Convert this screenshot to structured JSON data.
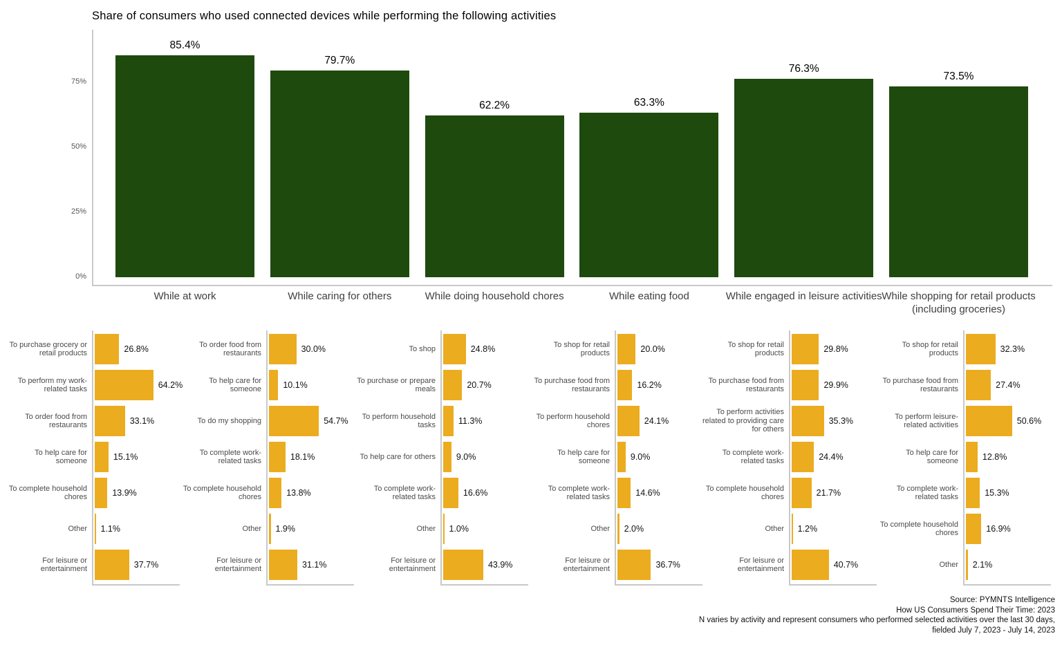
{
  "title": "Share of consumers who used connected devices while performing the following activities",
  "colors": {
    "main_bar_green": "#1E4A0E",
    "sub_bar_orange": "#ECAC20",
    "axis_gray": "#c9c9c9",
    "label_gray": "#4a4a4a"
  },
  "chart_data": [
    {
      "type": "bar",
      "title": "Share of consumers who used connected devices while performing the following activities",
      "categories": [
        "While at work",
        "While caring for others",
        "While doing household chores",
        "While eating food",
        "While engaged in leisure activities",
        "While shopping for retail products (including groceries)"
      ],
      "values": [
        85.4,
        79.7,
        62.2,
        63.3,
        76.3,
        73.5
      ],
      "value_labels": [
        "85.4%",
        "79.7%",
        "62.2%",
        "63.3%",
        "76.3%",
        "73.5%"
      ],
      "xlabel": "",
      "ylabel": "",
      "ylim": [
        0,
        100
      ],
      "yticks": [
        {
          "label": "0%",
          "value": 0
        },
        {
          "label": "25%",
          "value": 25
        },
        {
          "label": "50%",
          "value": 50
        },
        {
          "label": "75%",
          "value": 75
        }
      ],
      "grid": false,
      "legend": "none",
      "bar_color": "#1E4A0E"
    },
    {
      "type": "bar",
      "orientation": "horizontal",
      "bar_color": "#ECAC20",
      "xlim": [
        0,
        95
      ],
      "grid": false,
      "facets": [
        {
          "activity": "While at work",
          "categories": [
            "To purchase grocery or retail products",
            "To perform my work-related tasks",
            "To order food from restaurants",
            "To help care for someone",
            "To complete household chores",
            "Other",
            "For leisure or entertainment"
          ],
          "values": [
            26.8,
            64.2,
            33.1,
            15.1,
            13.9,
            1.1,
            37.7
          ],
          "value_labels": [
            "26.8%",
            "64.2%",
            "33.1%",
            "15.1%",
            "13.9%",
            "1.1%",
            "37.7%"
          ]
        },
        {
          "activity": "While caring for others",
          "categories": [
            "To order food from restaurants",
            "To help care for someone",
            "To do my shopping",
            "To complete work-related tasks",
            "To complete household chores",
            "Other",
            "For leisure or entertainment"
          ],
          "values": [
            30.0,
            10.1,
            54.7,
            18.1,
            13.8,
            1.9,
            31.1
          ],
          "value_labels": [
            "30.0%",
            "10.1%",
            "54.7%",
            "18.1%",
            "13.8%",
            "1.9%",
            "31.1%"
          ]
        },
        {
          "activity": "While doing household chores",
          "categories": [
            "To shop",
            "To purchase or prepare meals",
            "To perform household tasks",
            "To help care for others",
            "To complete work-related tasks",
            "Other",
            "For leisure or entertainment"
          ],
          "values": [
            24.8,
            20.7,
            11.3,
            9.0,
            16.6,
            1.0,
            43.9
          ],
          "value_labels": [
            "24.8%",
            "20.7%",
            "11.3%",
            "9.0%",
            "16.6%",
            "1.0%",
            "43.9%"
          ]
        },
        {
          "activity": "While eating food",
          "categories": [
            "To shop for retail products",
            "To purchase food from restaurants",
            "To perform household chores",
            "To help care for someone",
            "To complete work-related tasks",
            "Other",
            "For leisure or entertainment"
          ],
          "values": [
            20.0,
            16.2,
            24.1,
            9.0,
            14.6,
            2.0,
            36.7
          ],
          "value_labels": [
            "20.0%",
            "16.2%",
            "24.1%",
            "9.0%",
            "14.6%",
            "2.0%",
            "36.7%"
          ]
        },
        {
          "activity": "While engaged in leisure activities",
          "categories": [
            "To shop for retail products",
            "To purchase food from restaurants",
            "To perform activities related to providing care for others",
            "To complete work-related tasks",
            "To complete household chores",
            "Other",
            "For leisure or entertainment"
          ],
          "values": [
            29.8,
            29.9,
            35.3,
            24.4,
            21.7,
            1.2,
            40.7
          ],
          "value_labels": [
            "29.8%",
            "29.9%",
            "35.3%",
            "24.4%",
            "21.7%",
            "1.2%",
            "40.7%"
          ]
        },
        {
          "activity": "While shopping for retail products (including groceries)",
          "categories": [
            "To shop for retail products",
            "To purchase food from restaurants",
            "To perform leisure-related activities",
            "To help care for someone",
            "To complete work-related tasks",
            "To complete household chores",
            "Other"
          ],
          "values": [
            32.3,
            27.4,
            50.6,
            12.8,
            15.3,
            16.9,
            2.1
          ],
          "value_labels": [
            "32.3%",
            "27.4%",
            "50.6%",
            "12.8%",
            "15.3%",
            "16.9%",
            "2.1%"
          ]
        }
      ]
    }
  ],
  "source": {
    "lines": [
      "Source: PYMNTS Intelligence",
      "How US Consumers Spend Their Time: 2023",
      "N varies by activity and represent consumers who performed selected activities over the last 30 days,",
      "fielded July 7, 2023 - July 14, 2023"
    ]
  }
}
